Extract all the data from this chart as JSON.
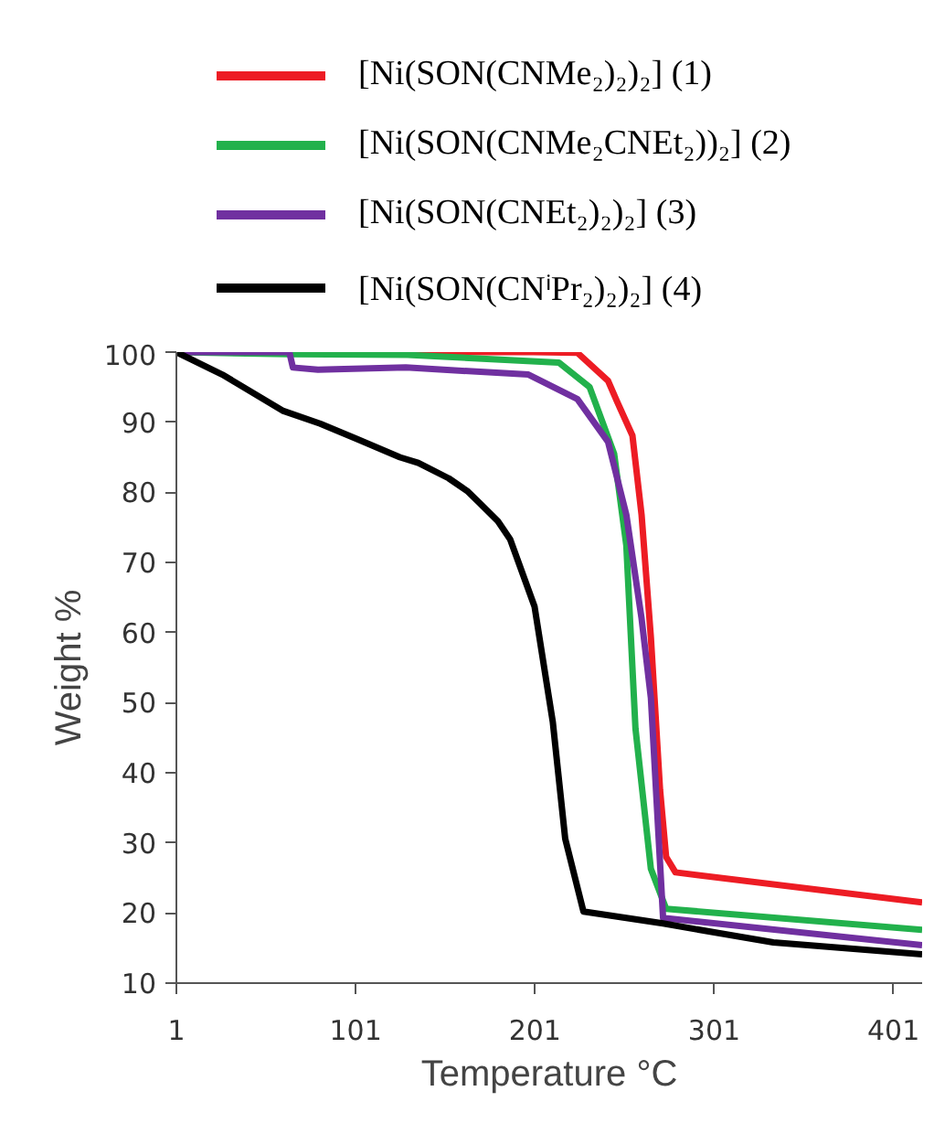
{
  "chart_data": {
    "type": "line",
    "xlabel": "Temperature °C",
    "ylabel": "Weight %",
    "xlim": [
      1,
      417
    ],
    "ylim": [
      10,
      100
    ],
    "xticks": [
      1,
      101,
      201,
      301,
      401
    ],
    "yticks": [
      10,
      20,
      30,
      40,
      50,
      60,
      70,
      80,
      90,
      100
    ],
    "grid": false,
    "legend": "top",
    "marker": "none",
    "line_style": "solid",
    "series": [
      {
        "name": "[Ni(SON(CNMe₂)₂)₂] (1)",
        "color": "#ed1c24",
        "x": [
          1,
          200,
          224.7,
          241.8,
          246.9,
          255.4,
          260.5,
          265.7,
          270.8,
          274.2,
          279.4,
          417
        ],
        "values": [
          100,
          100,
          99.9,
          95.9,
          92.9,
          88.1,
          76.8,
          59.3,
          37.6,
          28,
          25.8,
          21.5
        ]
      },
      {
        "name": "[Ni(SON(CNMe₂CNEt₂))₂] (2)",
        "color": "#22b14c",
        "x": [
          1,
          64,
          130,
          214.4,
          231.5,
          245.2,
          252,
          257.1,
          265.7,
          274.2,
          417
        ],
        "values": [
          100,
          99.7,
          99.6,
          98.5,
          95,
          85.5,
          72.4,
          46.3,
          26.3,
          20.6,
          17.6
        ]
      },
      {
        "name": "[Ni(SON(CNEt₂)₂)₂] (3)",
        "color": "#7030a0",
        "x": [
          1,
          64,
          66,
          80,
          129,
          197.4,
          224.7,
          241.8,
          252,
          260.5,
          265.7,
          272.5,
          417
        ],
        "values": [
          100,
          100,
          97.8,
          97.5,
          97.8,
          96.8,
          93.3,
          87.2,
          76.8,
          62,
          50.7,
          19.3,
          15.4
        ]
      },
      {
        "name": "[Ni(SON(CNⁱPr₂)₂)₂] (4)",
        "color": "#000000",
        "x": [
          1,
          26.6,
          60.7,
          81.2,
          101.7,
          125.7,
          135.9,
          152.9,
          163.2,
          170,
          180.3,
          187.2,
          200.8,
          211,
          217.9,
          228.1,
          272.5,
          334,
          417
        ],
        "values": [
          100,
          96.8,
          91.6,
          89.8,
          87.6,
          85,
          84.2,
          82,
          80.2,
          78.5,
          75.9,
          73.3,
          63.7,
          47.2,
          30.6,
          20.2,
          18.5,
          15.8,
          14.1
        ]
      }
    ]
  }
}
